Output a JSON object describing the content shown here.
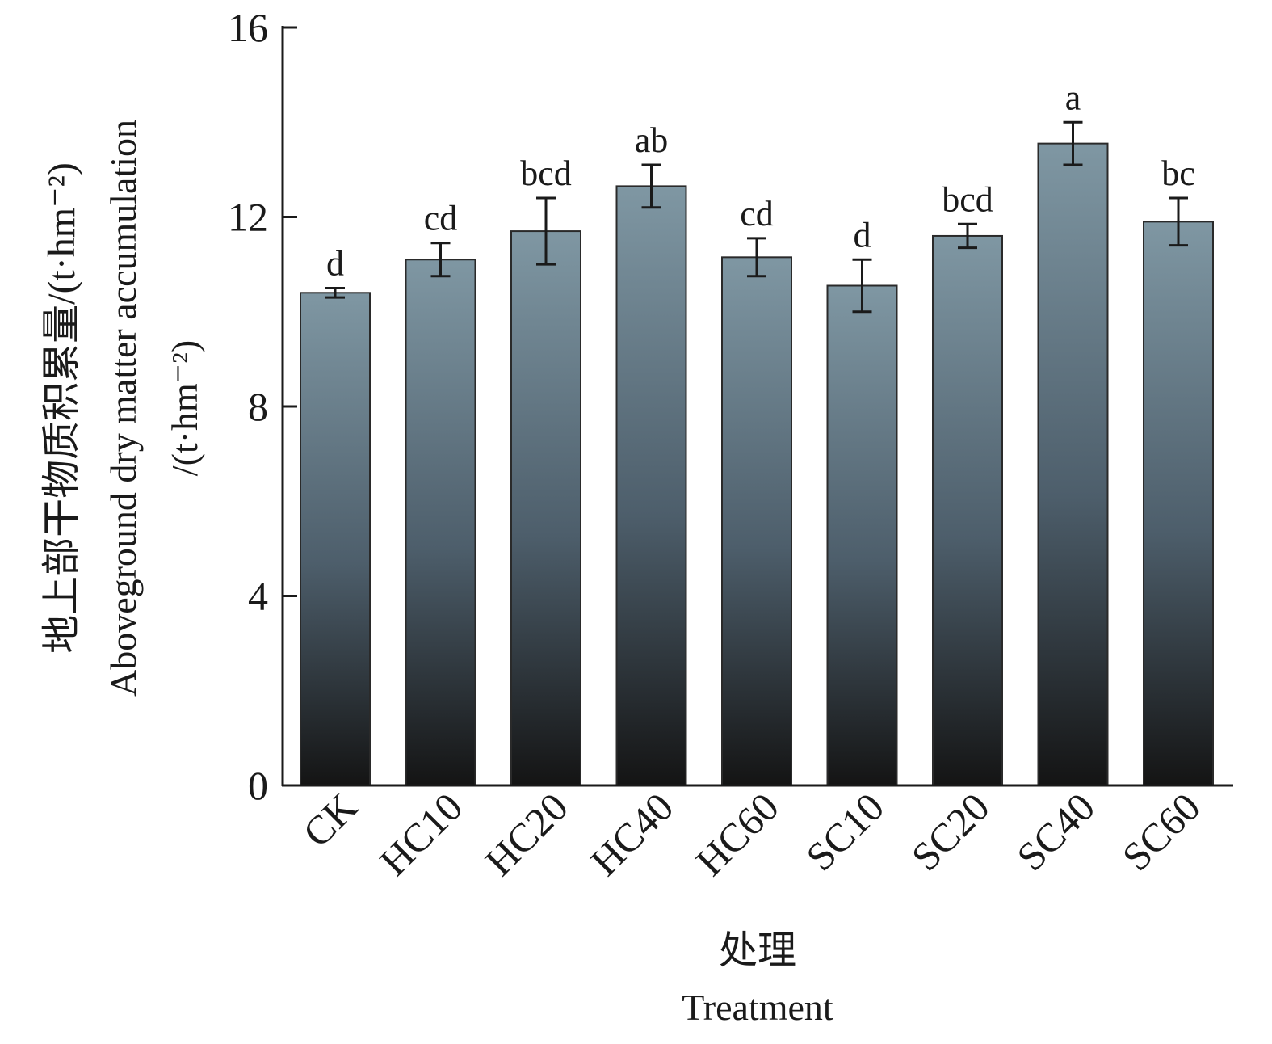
{
  "chart_data": {
    "type": "bar",
    "categories": [
      "CK",
      "HC10",
      "HC20",
      "HC40",
      "HC60",
      "SC10",
      "SC20",
      "SC40",
      "SC60"
    ],
    "values": [
      10.4,
      11.1,
      11.7,
      12.65,
      11.15,
      10.55,
      11.6,
      13.55,
      11.9
    ],
    "errors": [
      0.1,
      0.35,
      0.7,
      0.45,
      0.4,
      0.55,
      0.25,
      0.45,
      0.5
    ],
    "significance": [
      "d",
      "cd",
      "bcd",
      "ab",
      "cd",
      "d",
      "bcd",
      "a",
      "bc"
    ],
    "ylim": [
      0,
      16
    ],
    "yticks": [
      0,
      4,
      8,
      12,
      16
    ],
    "ylabel_cn": "地上部干物质积累量/(t·hm⁻²)",
    "ylabel_en": "Aboveground dry matter accumulation",
    "ylabel_unit": "/(t·hm⁻²)",
    "xlabel_cn": "处理",
    "xlabel_en": "Treatment",
    "bar_gradient": {
      "top": "#7f97a3",
      "mid": "#4d5e6b",
      "bottom": "#141414"
    },
    "grid": false
  }
}
